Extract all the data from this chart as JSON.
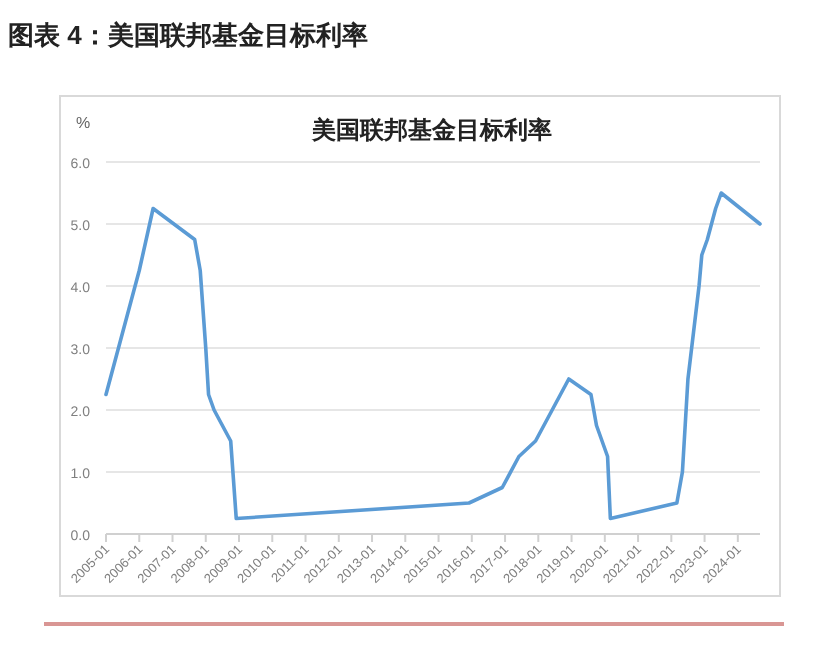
{
  "chart_data": {
    "type": "line",
    "title": "图表 4：美国联邦基金目标利率",
    "subtitle": "美国联邦基金目标利率",
    "ylabel": "%",
    "series": [
      {
        "color": "#5b9bd5",
        "x": [
          "2005-01",
          "2005-07",
          "2006-01",
          "2006-06",
          "2007-09",
          "2007-11",
          "2008-01",
          "2008-02",
          "2008-04",
          "2008-10",
          "2008-12",
          "2015-12",
          "2016-12",
          "2017-06",
          "2017-12",
          "2018-06",
          "2018-12",
          "2019-08",
          "2019-10",
          "2020-02",
          "2020-03",
          "2022-03",
          "2022-05",
          "2022-06",
          "2022-07",
          "2022-09",
          "2022-11",
          "2022-12",
          "2023-02",
          "2023-05",
          "2023-07",
          "2024-09"
        ],
        "values": [
          2.25,
          3.25,
          4.25,
          5.25,
          4.75,
          4.25,
          3.0,
          2.25,
          2.0,
          1.5,
          0.25,
          0.5,
          0.75,
          1.25,
          1.5,
          2.0,
          2.5,
          2.25,
          1.75,
          1.25,
          0.25,
          0.5,
          1.0,
          1.75,
          2.5,
          3.25,
          4.0,
          4.5,
          4.75,
          5.25,
          5.5,
          5.0
        ]
      }
    ],
    "xlim": [
      "2005-01",
      "2024-09"
    ],
    "xticks": [
      "2005-01",
      "2006-01",
      "2007-01",
      "2008-01",
      "2009-01",
      "2010-01",
      "2011-01",
      "2012-01",
      "2013-01",
      "2014-01",
      "2015-01",
      "2016-01",
      "2017-01",
      "2018-01",
      "2019-01",
      "2020-01",
      "2021-01",
      "2022-01",
      "2023-01",
      "2024-01"
    ],
    "ylim": [
      0,
      6
    ],
    "yticks": [
      {
        "value": 0,
        "label": "0.0"
      },
      {
        "value": 1,
        "label": "1.0"
      },
      {
        "value": 2,
        "label": "2.0"
      },
      {
        "value": 3,
        "label": "3.0"
      },
      {
        "value": 4,
        "label": "4.0"
      },
      {
        "value": 5,
        "label": "5.0"
      },
      {
        "value": 6,
        "label": "6.0"
      }
    ],
    "grid": "y",
    "marker": "none",
    "line_style": "solid"
  }
}
